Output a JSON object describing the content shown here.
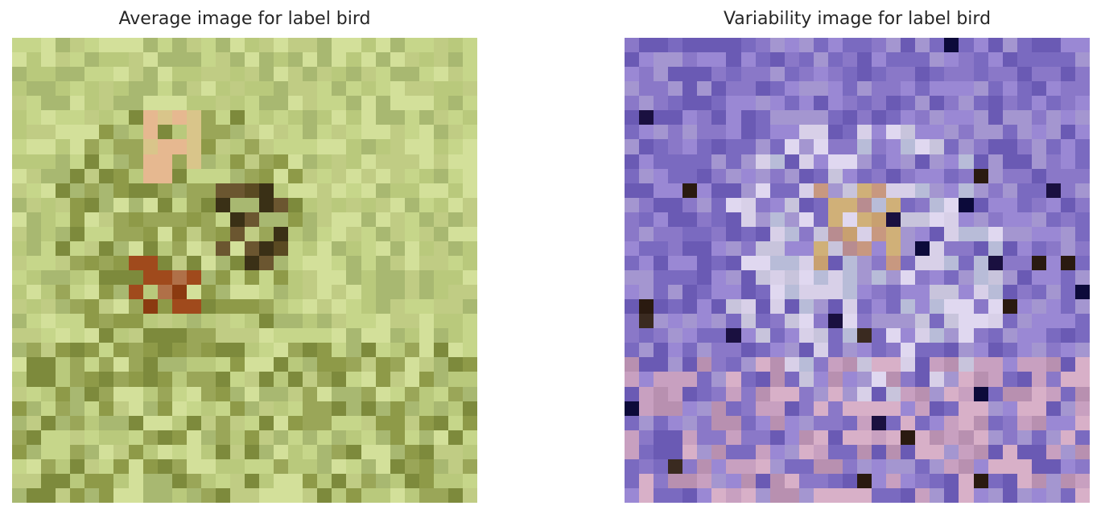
{
  "figure": {
    "average_panel": {
      "title": "Average image for label bird",
      "depiction": "blurred 32x32 mean image, yellow-green background with a brown bird-like blob",
      "palette": {
        "background": [
          "#c6d68a",
          "#b9c97c",
          "#d3e09a",
          "#a8b871",
          "#c0cc84"
        ],
        "highlight": [
          "#e6b890",
          "#d9c58a"
        ],
        "bird_dark": [
          "#3a3016",
          "#5a4a22",
          "#6b5630"
        ],
        "bird_rust": [
          "#8b3a10",
          "#a04a1c",
          "#b07048"
        ],
        "olive": [
          "#8e9a48",
          "#7d8a3c",
          "#9aa658"
        ]
      }
    },
    "variability_panel": {
      "title": "Variability image for label bird",
      "depiction": "blurred 32x32 per-pixel std image in purple/lavender tones with scattered dark navy and bright pixels",
      "palette": {
        "background": [
          "#8a78c8",
          "#7a6ac0",
          "#9a88d4",
          "#6a5ab4",
          "#a496d0"
        ],
        "light": [
          "#c8c4dc",
          "#d8d0e8",
          "#b8bcd8",
          "#e0d8f0"
        ],
        "warm": [
          "#c8a070",
          "#d0b078",
          "#c89880",
          "#b88c90"
        ],
        "dark": [
          "#1a1040",
          "#2a1a10",
          "#0c0a3a",
          "#3a2a20"
        ],
        "pink": [
          "#c8a0c0",
          "#d8b0c8",
          "#b890b0"
        ]
      }
    }
  }
}
